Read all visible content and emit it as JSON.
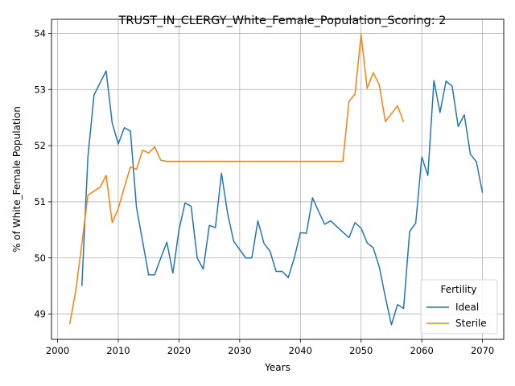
{
  "chart_data": {
    "type": "line",
    "title": "TRUST_IN_CLERGY_White_Female_Population_Scoring: 2",
    "xlabel": "Years",
    "ylabel": "% of White_Female Population",
    "xlim": [
      1999,
      2073.5
    ],
    "ylim": [
      48.55,
      54.25
    ],
    "xticks": [
      2000,
      2010,
      2020,
      2030,
      2040,
      2050,
      2060,
      2070
    ],
    "yticks": [
      49,
      50,
      51,
      52,
      53,
      54
    ],
    "grid": true,
    "legend": {
      "title": "Fertility",
      "position": "lower right"
    },
    "series": [
      {
        "name": "Ideal",
        "color": "#1f77b4",
        "x": [
          2004,
          2005,
          2006,
          2007,
          2008,
          2009,
          2010,
          2011,
          2012,
          2013,
          2014,
          2015,
          2016,
          2017,
          2018,
          2019,
          2020,
          2021,
          2022,
          2023,
          2024,
          2025,
          2026,
          2027,
          2028,
          2029,
          2030,
          2031,
          2032,
          2033,
          2034,
          2035,
          2036,
          2037,
          2038,
          2039,
          2040,
          2041,
          2042,
          2043,
          2044,
          2045,
          2046,
          2047,
          2048,
          2049,
          2050,
          2051,
          2052,
          2053,
          2054,
          2055,
          2056,
          2057,
          2058,
          2059,
          2060,
          2061,
          2062,
          2063,
          2064,
          2065,
          2066,
          2067,
          2068,
          2069,
          2070
        ],
        "y": [
          49.5,
          51.8,
          52.9,
          53.12,
          53.33,
          52.4,
          52.03,
          52.32,
          52.26,
          50.9,
          50.3,
          49.7,
          49.7,
          50.0,
          50.28,
          49.73,
          50.5,
          50.98,
          50.92,
          50.0,
          49.8,
          50.58,
          50.54,
          51.51,
          50.8,
          50.3,
          50.15,
          50.0,
          50.0,
          50.66,
          50.26,
          50.12,
          49.76,
          49.76,
          49.65,
          50.0,
          50.45,
          50.44,
          51.07,
          50.83,
          50.6,
          50.66,
          50.56,
          50.46,
          50.36,
          50.63,
          50.53,
          50.27,
          50.18,
          49.84,
          49.3,
          48.81,
          49.17,
          49.1,
          50.47,
          50.62,
          51.8,
          51.47,
          53.16,
          52.59,
          53.15,
          53.06,
          52.34,
          52.55,
          51.85,
          51.71,
          51.16
        ]
      },
      {
        "name": "Sterile",
        "color": "#ff7f0e",
        "x": [
          2002,
          2003,
          2004,
          2005,
          2006,
          2007,
          2008,
          2009,
          2010,
          2011,
          2012,
          2013,
          2014,
          2015,
          2016,
          2017,
          2018,
          2019,
          2020,
          2021,
          2022,
          2023,
          2024,
          2025,
          2026,
          2027,
          2028,
          2029,
          2030,
          2031,
          2032,
          2033,
          2034,
          2035,
          2036,
          2037,
          2038,
          2039,
          2040,
          2041,
          2042,
          2043,
          2044,
          2045,
          2046,
          2047,
          2048,
          2049,
          2050,
          2051,
          2052,
          2053,
          2054,
          2055,
          2056,
          2057
        ],
        "y": [
          48.82,
          49.42,
          50.25,
          51.12,
          51.19,
          51.26,
          51.47,
          50.63,
          50.88,
          51.26,
          51.62,
          51.58,
          51.92,
          51.87,
          51.98,
          51.74,
          51.72,
          51.72,
          51.72,
          51.72,
          51.72,
          51.72,
          51.72,
          51.72,
          51.72,
          51.72,
          51.72,
          51.72,
          51.72,
          51.72,
          51.72,
          51.72,
          51.72,
          51.72,
          51.72,
          51.72,
          51.72,
          51.72,
          51.72,
          51.72,
          51.72,
          51.72,
          51.72,
          51.72,
          51.72,
          51.72,
          52.79,
          52.92,
          53.98,
          53.02,
          53.3,
          53.08,
          52.43,
          52.57,
          52.71,
          52.42
        ]
      }
    ]
  }
}
